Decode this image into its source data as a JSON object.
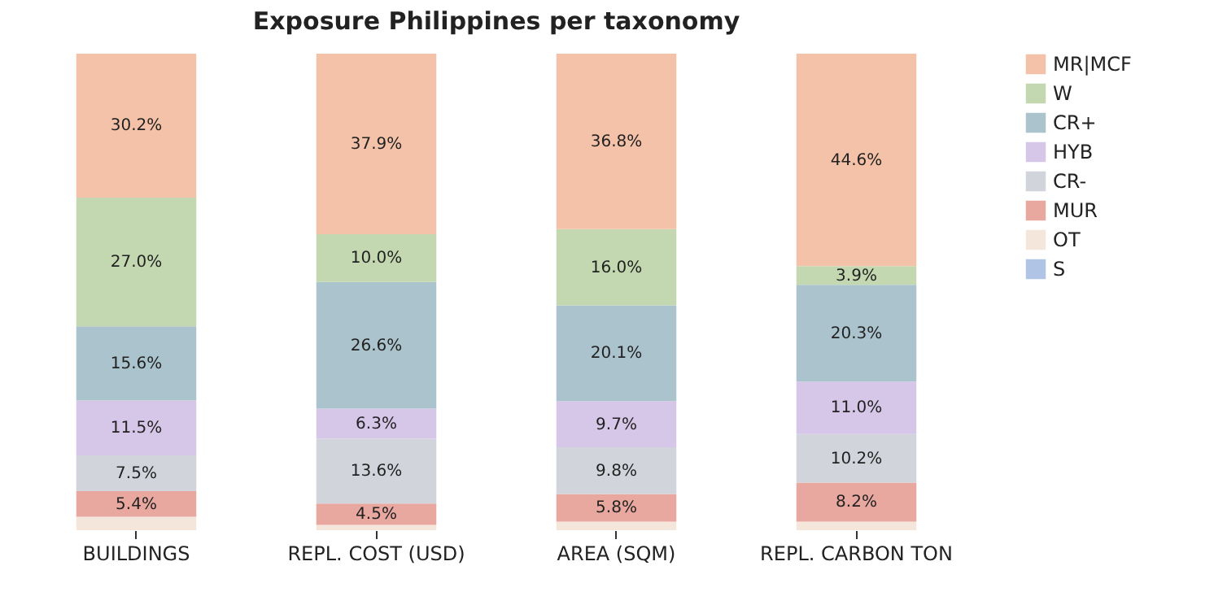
{
  "chart_data": {
    "type": "bar",
    "title": "Exposure Philippines per taxonomy",
    "stacked": true,
    "legend": "top right",
    "categories": [
      "BUILDINGS",
      "REPL. COST (USD)",
      "AREA (SQM)",
      "REPL. CARBON TON"
    ],
    "series": [
      {
        "name": "S",
        "color": "#b0c4e6",
        "values": [
          0,
          0,
          0,
          0
        ],
        "value_labels": [
          null,
          null,
          null,
          null
        ]
      },
      {
        "name": "OT",
        "color": "#f4e6db",
        "values": [
          2.8,
          1.1,
          1.8,
          1.8
        ],
        "value_labels": [
          null,
          null,
          null,
          null
        ]
      },
      {
        "name": "MUR",
        "color": "#e8a79f",
        "values": [
          5.4,
          4.5,
          5.8,
          8.2
        ],
        "value_labels": [
          "5.4%",
          "4.5%",
          "5.8%",
          "8.2%"
        ]
      },
      {
        "name": "CR-",
        "color": "#d1d4db",
        "values": [
          7.5,
          13.6,
          9.8,
          10.2
        ],
        "value_labels": [
          "7.5%",
          "13.6%",
          "9.8%",
          "10.2%"
        ]
      },
      {
        "name": "HYB",
        "color": "#d6c6e8",
        "values": [
          11.5,
          6.3,
          9.7,
          11.0
        ],
        "value_labels": [
          "11.5%",
          "6.3%",
          "9.7%",
          "11.0%"
        ]
      },
      {
        "name": "CR+",
        "color": "#abc3cd",
        "values": [
          15.6,
          26.6,
          20.1,
          20.3
        ],
        "value_labels": [
          "15.6%",
          "26.6%",
          "20.1%",
          "20.3%"
        ]
      },
      {
        "name": "W",
        "color": "#c3d8b0",
        "values": [
          27.0,
          10.0,
          16.0,
          3.9
        ],
        "value_labels": [
          "27.0%",
          "10.0%",
          "16.0%",
          "3.9%"
        ]
      },
      {
        "name": "MR|MCF",
        "color": "#f4c2a8",
        "values": [
          30.2,
          37.9,
          36.8,
          44.6
        ],
        "value_labels": [
          "30.2%",
          "37.9%",
          "36.8%",
          "44.6%"
        ]
      }
    ]
  }
}
